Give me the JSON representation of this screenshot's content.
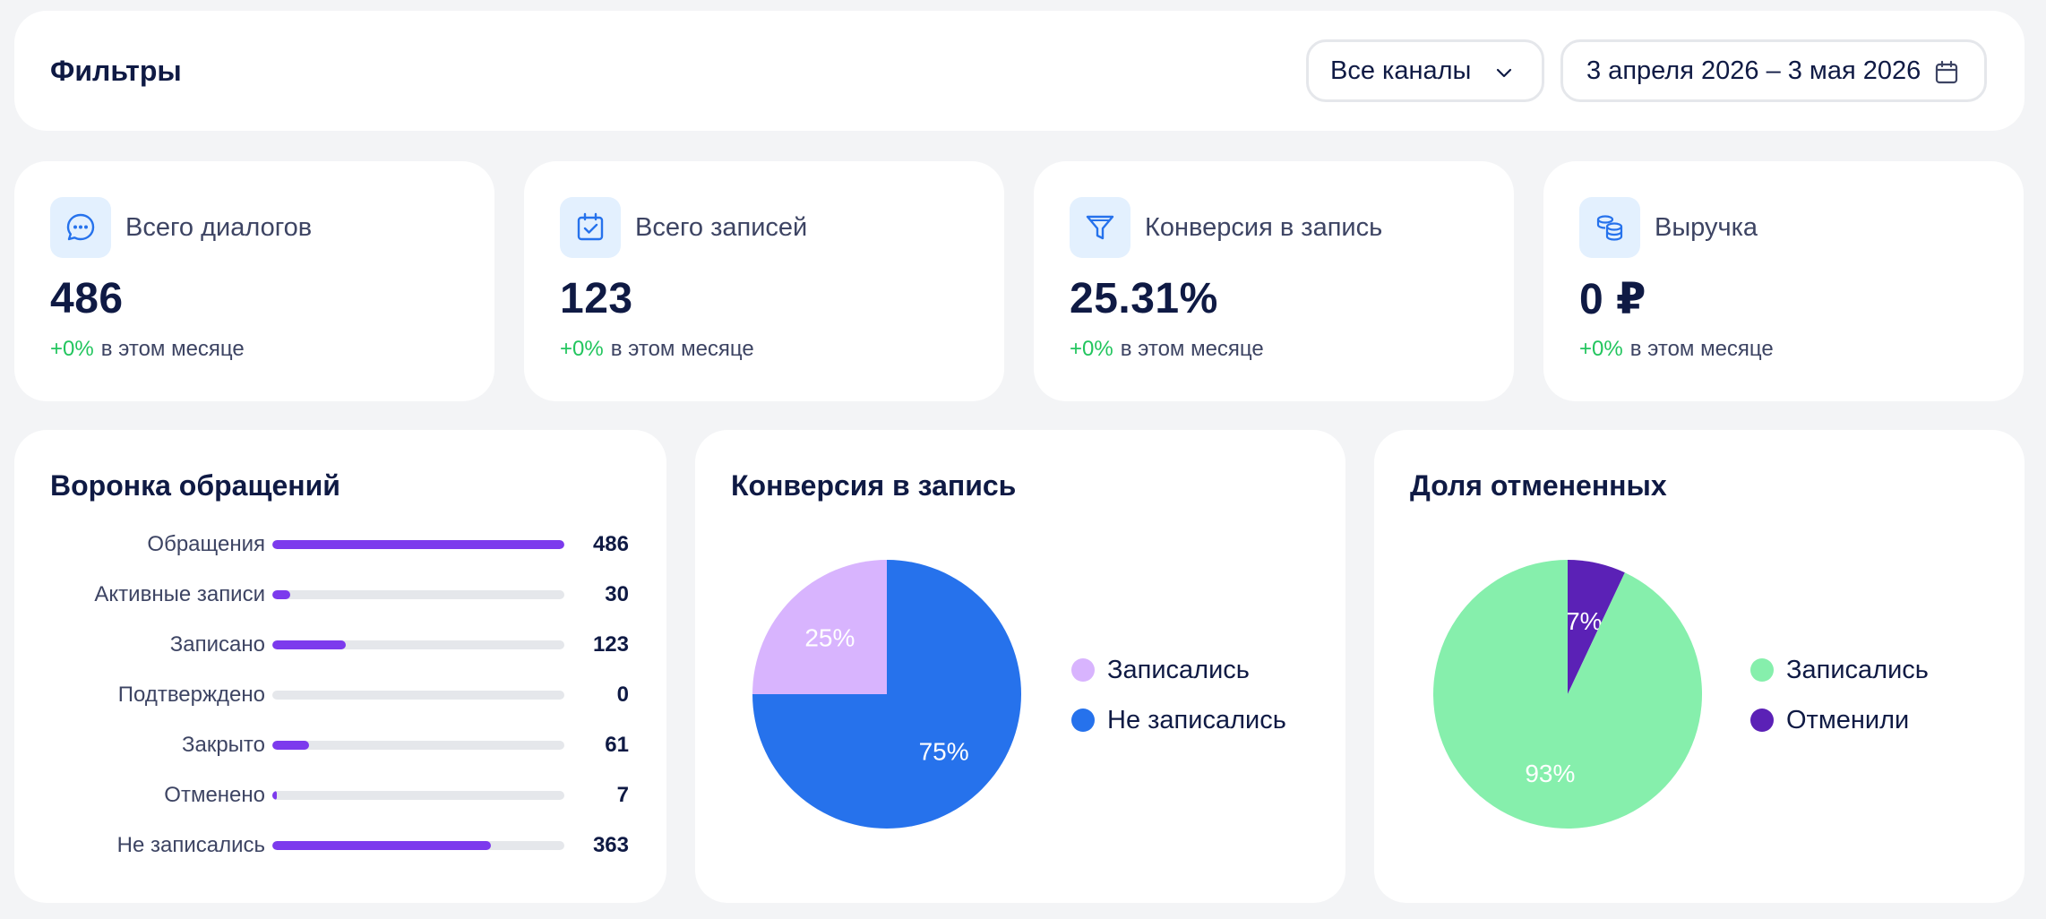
{
  "filters": {
    "title": "Фильтры",
    "channel": "Все каналы",
    "date_range": "3 апреля 2026 – 3 мая 2026"
  },
  "kpis": [
    {
      "label": "Всего диалогов",
      "value": "486",
      "change": "+0%",
      "period": "в этом месяце",
      "icon": "chat-bubble-icon"
    },
    {
      "label": "Всего записей",
      "value": "123",
      "change": "+0%",
      "period": "в этом месяце",
      "icon": "calendar-check-icon"
    },
    {
      "label": "Конверсия в запись",
      "value": "25.31%",
      "change": "+0%",
      "period": "в этом месяце",
      "icon": "funnel-icon"
    },
    {
      "label": "Выручка",
      "value": "0 ₽",
      "change": "+0%",
      "period": "в этом месяце",
      "icon": "coins-icon"
    }
  ],
  "funnel": {
    "title": "Воронка обращений",
    "rows": [
      {
        "label": "Обращения",
        "value": 486,
        "fraction": 1.0
      },
      {
        "label": "Активные записи",
        "value": 30,
        "fraction": 0.062
      },
      {
        "label": "Записано",
        "value": 123,
        "fraction": 0.253
      },
      {
        "label": "Подтверждено",
        "value": 0,
        "fraction": 0
      },
      {
        "label": "Закрыто",
        "value": 61,
        "fraction": 0.126
      },
      {
        "label": "Отменено",
        "value": 7,
        "fraction": 0.014
      },
      {
        "label": "Не записались",
        "value": 363,
        "fraction": 0.747
      }
    ]
  },
  "colors": {
    "accent_purple": "#7c3aed",
    "blue": "#2672ec",
    "lilac": "#d8b4fe",
    "green": "#86efac",
    "deep_purple": "#5b21b6",
    "positive": "#22c55e"
  },
  "chart_data": [
    {
      "type": "pie",
      "title": "Конверсия в запись",
      "series": [
        {
          "name": "Записались",
          "value": 25,
          "label": "25%",
          "color": "#d8b4fe"
        },
        {
          "name": "Не записались",
          "value": 75,
          "label": "75%",
          "color": "#2672ec"
        }
      ],
      "legend": "right"
    },
    {
      "type": "pie",
      "title": "Доля отмененных",
      "series": [
        {
          "name": "Записались",
          "value": 93,
          "label": "93%",
          "color": "#86efac"
        },
        {
          "name": "Отменили",
          "value": 7,
          "label": "7%",
          "color": "#5b21b6"
        }
      ],
      "legend": "right"
    }
  ]
}
